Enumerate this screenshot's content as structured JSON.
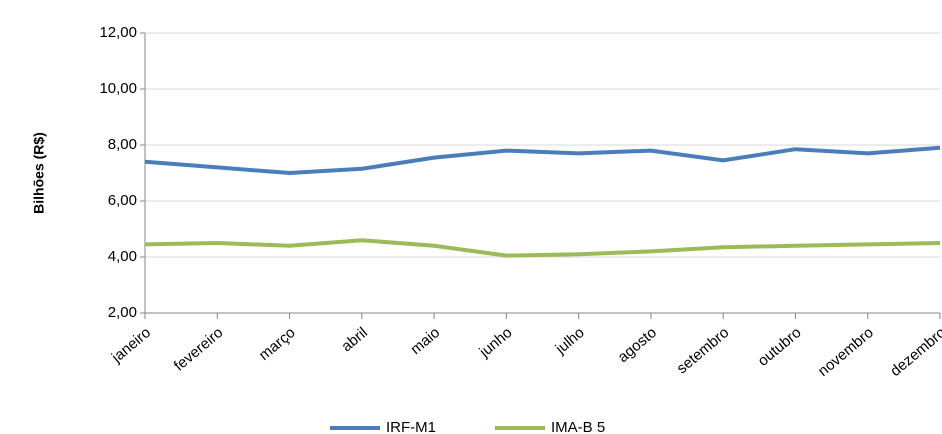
{
  "chart_data": {
    "type": "line",
    "y_label": "Bilhões (R$)",
    "categories": [
      "janeiro",
      "fevereiro",
      "março",
      "abril",
      "maio",
      "junho",
      "julho",
      "agosto",
      "setembro",
      "outubro",
      "novembro",
      "dezembro"
    ],
    "series": [
      {
        "name": "IRF-M1",
        "color": "#4a7ebb",
        "values": [
          7.4,
          7.2,
          7.0,
          7.15,
          7.55,
          7.8,
          7.7,
          7.8,
          7.45,
          7.85,
          7.7,
          7.9
        ]
      },
      {
        "name": "IMA-B 5",
        "color": "#9bbb59",
        "values": [
          4.45,
          4.5,
          4.4,
          4.6,
          4.4,
          4.05,
          4.1,
          4.2,
          4.35,
          4.4,
          4.45,
          4.5
        ]
      }
    ],
    "ylim": [
      2,
      12
    ],
    "yticks": [
      {
        "value": 2,
        "label": "2,00"
      },
      {
        "value": 4,
        "label": "4,00"
      },
      {
        "value": 6,
        "label": "6,00"
      },
      {
        "value": 8,
        "label": "8,00"
      },
      {
        "value": 10,
        "label": "10,00"
      },
      {
        "value": 12,
        "label": "12,00"
      }
    ],
    "grid": true,
    "legend": "bottom"
  }
}
